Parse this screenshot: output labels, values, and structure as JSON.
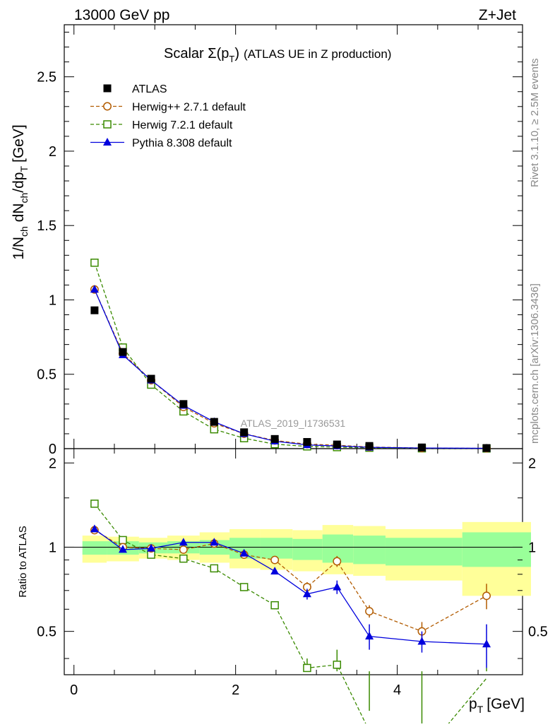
{
  "header": {
    "left": "13000 GeV pp",
    "right": "Z+Jet"
  },
  "side_labels": {
    "rivet": "Rivet 3.1.10, ≥ 2.5M events",
    "mcplots": "mcplots.cern.ch [arXiv:1306.3436]"
  },
  "chart_data": {
    "type": "scatter",
    "title_prefix": "Scalar ",
    "title_sigma": "Σ(p",
    "title_sub": "T",
    "title_close": ")",
    "title_suffix": "(ATLAS UE in Z production)",
    "analysis_label": "ATLAS_2019_I1736531",
    "xlabel": "p",
    "xlabel_sub": "T",
    "xlabel_unit": "[GeV]",
    "ylabel": "1/N",
    "ylabel_sub1": "ch",
    "ylabel_mid": " dN",
    "ylabel_sub2": "ch",
    "ylabel_mid2": "/dp",
    "ylabel_sub3": "T",
    "ylabel_unit": "[GeV]",
    "ratio_ylabel": "Ratio to ATLAS",
    "xlim": [
      -0.12,
      5.55
    ],
    "ylim": [
      0,
      2.85
    ],
    "ratio_ylim": [
      0.35,
      2.25
    ],
    "x_ticks": [
      "0",
      "2",
      "4"
    ],
    "y_ticks": [
      "0",
      "0.5",
      "1",
      "1.5",
      "2",
      "2.5"
    ],
    "ratio_ticks": [
      "0.5",
      "1",
      "2"
    ],
    "x": [
      0.15,
      0.5,
      0.85,
      1.25,
      1.63,
      2.0,
      2.38,
      2.78,
      3.15,
      3.55,
      4.2,
      5.0
    ],
    "bin_edges": [
      0.0,
      0.3,
      0.7,
      1.05,
      1.45,
      1.82,
      2.2,
      2.6,
      2.97,
      3.35,
      3.75,
      4.7,
      5.55
    ],
    "band_yellow": [
      [
        0.88,
        1.1
      ],
      [
        0.89,
        1.09
      ],
      [
        0.91,
        1.08
      ],
      [
        0.9,
        1.1
      ],
      [
        0.88,
        1.13
      ],
      [
        0.84,
        1.16
      ],
      [
        0.83,
        1.16
      ],
      [
        0.82,
        1.15
      ],
      [
        0.8,
        1.2
      ],
      [
        0.79,
        1.19
      ],
      [
        0.76,
        1.16
      ],
      [
        0.67,
        1.23
      ]
    ],
    "band_green": [
      [
        0.94,
        1.05
      ],
      [
        0.94,
        1.05
      ],
      [
        0.95,
        1.04
      ],
      [
        0.95,
        1.05
      ],
      [
        0.94,
        1.06
      ],
      [
        0.91,
        1.08
      ],
      [
        0.91,
        1.08
      ],
      [
        0.9,
        1.07
      ],
      [
        0.88,
        1.11
      ],
      [
        0.87,
        1.1
      ],
      [
        0.86,
        1.08
      ],
      [
        0.85,
        1.13
      ]
    ],
    "series": [
      {
        "name": "ATLAS",
        "color": "#000000",
        "marker": "square-filled",
        "values": [
          0.93,
          0.65,
          0.47,
          0.3,
          0.18,
          0.11,
          0.065,
          0.045,
          0.028,
          0.018,
          0.008,
          0.004
        ]
      },
      {
        "name": "Herwig++ 2.7.1 default",
        "color": "#b25b00",
        "marker": "circle-open",
        "dash": "5,3",
        "values": [
          1.07,
          0.64,
          0.46,
          0.28,
          0.17,
          0.1,
          0.055,
          0.03,
          0.023,
          0.011,
          0.004,
          0.002
        ],
        "ratio": [
          1.15,
          1.0,
          0.99,
          0.98,
          1.03,
          0.94,
          0.9,
          0.72,
          0.89,
          0.59,
          0.5,
          0.67
        ],
        "ratio_err": [
          0.02,
          0.01,
          0.01,
          0.01,
          0.01,
          0.01,
          0.02,
          0.03,
          0.04,
          0.03,
          0.04,
          0.07
        ]
      },
      {
        "name": "Herwig 7.2.1 default",
        "color": "#3a8a00",
        "marker": "square-open",
        "dash": "5,3",
        "values": [
          1.25,
          0.68,
          0.43,
          0.25,
          0.13,
          0.07,
          0.03,
          0.015,
          0.01,
          0.006,
          0.002,
          0.001
        ],
        "ratio": [
          1.43,
          1.06,
          0.94,
          0.91,
          0.84,
          0.72,
          0.62,
          0.37,
          0.38,
          0.22,
          0.18,
          0.34
        ],
        "ratio_err": [
          0.02,
          0.01,
          0.01,
          0.01,
          0.01,
          0.01,
          0.02,
          0.03,
          0.05,
          0.04,
          0.03,
          0.03
        ]
      },
      {
        "name": "Pythia 8.308 default",
        "color": "#0000dd",
        "marker": "triangle-filled",
        "dash": "",
        "values": [
          1.07,
          0.63,
          0.46,
          0.29,
          0.18,
          0.1,
          0.05,
          0.025,
          0.018,
          0.009,
          0.004,
          0.002
        ],
        "ratio": [
          1.16,
          0.98,
          0.99,
          1.04,
          1.04,
          0.95,
          0.82,
          0.68,
          0.72,
          0.48,
          0.46,
          0.45
        ],
        "ratio_err": [
          0.02,
          0.01,
          0.01,
          0.01,
          0.01,
          0.01,
          0.02,
          0.03,
          0.04,
          0.05,
          0.04,
          0.08
        ]
      }
    ]
  }
}
